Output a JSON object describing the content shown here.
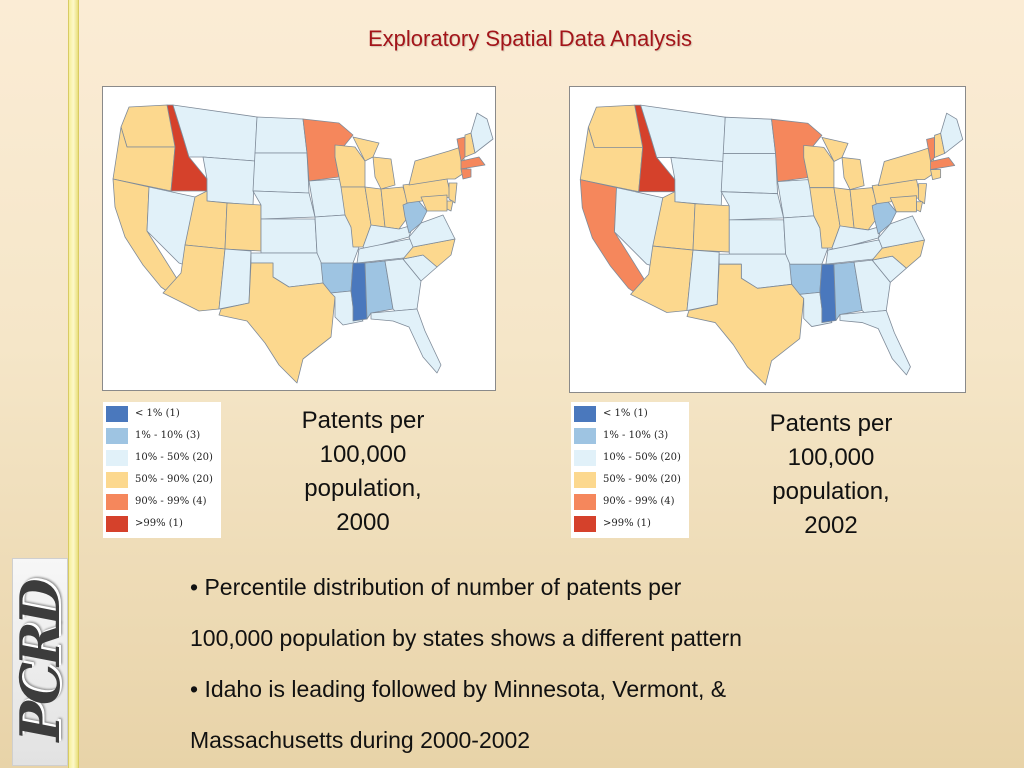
{
  "title": "Exploratory Spatial Data Analysis",
  "legend_colors": {
    "lt1": "#4a78bd",
    "p1_10": "#9ec4e2",
    "p10_50": "#e1f1f9",
    "p50_90": "#fcd88e",
    "p90_99": "#f5875c",
    "gt99": "#d5412b"
  },
  "legend": [
    {
      "label": "< 1% (1)",
      "class": "lt1"
    },
    {
      "label": "1% - 10% (3)",
      "class": "p1_10"
    },
    {
      "label": "10% - 50% (20)",
      "class": "p10_50"
    },
    {
      "label": "50% - 90% (20)",
      "class": "p50_90"
    },
    {
      "label": "90% - 99% (4)",
      "class": "p90_99"
    },
    {
      "label": ">99% (1)",
      "class": "gt99"
    }
  ],
  "maps": [
    {
      "caption": [
        "Patents per",
        "100,000",
        "population,",
        "2000"
      ],
      "state_classes": {
        "WA": "p50_90",
        "OR": "p50_90",
        "CA": "p50_90",
        "ID": "gt99",
        "NV": "p10_50",
        "MT": "p10_50",
        "WY": "p10_50",
        "UT": "p50_90",
        "CO": "p50_90",
        "AZ": "p50_90",
        "NM": "p10_50",
        "ND": "p10_50",
        "SD": "p10_50",
        "NE": "p10_50",
        "KS": "p10_50",
        "OK": "p10_50",
        "TX": "p50_90",
        "MN": "p90_99",
        "IA": "p10_50",
        "MO": "p10_50",
        "AR": "p1_10",
        "LA": "p10_50",
        "WI": "p50_90",
        "IL": "p50_90",
        "MI": "p50_90",
        "IN": "p50_90",
        "OH": "p50_90",
        "KY": "p10_50",
        "TN": "p10_50",
        "MS": "lt1",
        "AL": "p1_10",
        "GA": "p10_50",
        "FL": "p10_50",
        "SC": "p10_50",
        "NC": "p50_90",
        "VA": "p10_50",
        "WV": "p1_10",
        "PA": "p50_90",
        "NY": "p50_90",
        "VT": "p90_99",
        "NH": "p50_90",
        "ME": "p10_50",
        "MA": "p90_99",
        "CT": "p90_99",
        "NJ": "p50_90",
        "DE": "p50_90",
        "MD": "p50_90"
      }
    },
    {
      "caption": [
        "Patents per",
        "100,000",
        "population,",
        "2002"
      ],
      "state_classes": {
        "WA": "p50_90",
        "OR": "p50_90",
        "CA": "p90_99",
        "ID": "gt99",
        "NV": "p10_50",
        "MT": "p10_50",
        "WY": "p10_50",
        "UT": "p50_90",
        "CO": "p50_90",
        "AZ": "p50_90",
        "NM": "p10_50",
        "ND": "p10_50",
        "SD": "p10_50",
        "NE": "p10_50",
        "KS": "p10_50",
        "OK": "p10_50",
        "TX": "p50_90",
        "MN": "p90_99",
        "IA": "p10_50",
        "MO": "p10_50",
        "AR": "p1_10",
        "LA": "p10_50",
        "WI": "p50_90",
        "IL": "p50_90",
        "MI": "p50_90",
        "IN": "p50_90",
        "OH": "p50_90",
        "KY": "p10_50",
        "TN": "p10_50",
        "MS": "lt1",
        "AL": "p1_10",
        "GA": "p10_50",
        "FL": "p10_50",
        "SC": "p10_50",
        "NC": "p50_90",
        "VA": "p10_50",
        "WV": "p1_10",
        "PA": "p50_90",
        "NY": "p50_90",
        "VT": "p90_99",
        "NH": "p50_90",
        "ME": "p10_50",
        "MA": "p90_99",
        "CT": "p50_90",
        "NJ": "p50_90",
        "DE": "p50_90",
        "MD": "p50_90"
      }
    }
  ],
  "bullets": [
    "• Percentile distribution of number of patents per",
    "100,000 population by states shows a different pattern",
    "• Idaho is leading followed by Minnesota, Vermont, &",
    "Massachusetts during 2000-2002"
  ],
  "logo_text": "PCRD"
}
